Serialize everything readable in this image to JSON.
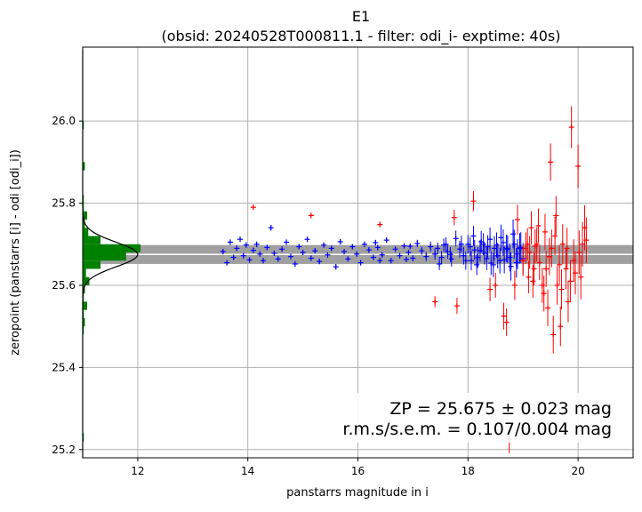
{
  "chart_data": {
    "type": "scatter",
    "title": "E1",
    "subtitle": "(obsid: 20240528T000811.1 - filter: odi_i- exptime: 40s)",
    "xlabel": "panstarrs magnitude in i",
    "ylabel": "zeropoint (panstarrs [i] - odi [odi_i])",
    "xlim": [
      11.0,
      21.0
    ],
    "ylim": [
      25.18,
      26.18
    ],
    "xticks": [
      "12",
      "14",
      "16",
      "18",
      "20"
    ],
    "yticks": [
      "25.2",
      "25.4",
      "25.6",
      "25.8",
      "26.0"
    ],
    "grid": true,
    "annotation": {
      "line1": "ZP = 25.675 ± 0.023 mag",
      "line2": "r.m.s/s.e.m. = 0.107/0.004 mag",
      "placement": "bottom-right"
    },
    "zp": 25.675,
    "zp_err": 0.023,
    "colors": {
      "used_points": "#0000ff",
      "rejected_points": "#ff0000",
      "histogram": "#008000",
      "gaussian": "#000000",
      "zp_band": "#a0a0a0",
      "zp_line": "#ffffff",
      "grid": "#b0b0b0"
    },
    "series": [
      {
        "role": "used",
        "points": [
          [
            13.55,
            25.682
          ],
          [
            13.62,
            25.655
          ],
          [
            13.68,
            25.705
          ],
          [
            13.74,
            25.668
          ],
          [
            13.8,
            25.69
          ],
          [
            13.86,
            25.712
          ],
          [
            13.92,
            25.672
          ],
          [
            13.97,
            25.698
          ],
          [
            14.03,
            25.662
          ],
          [
            14.1,
            25.685
          ],
          [
            14.16,
            25.7
          ],
          [
            14.22,
            25.676
          ],
          [
            14.28,
            25.66
          ],
          [
            14.35,
            25.692
          ],
          [
            14.42,
            25.74
          ],
          [
            14.48,
            25.678
          ],
          [
            14.55,
            25.664
          ],
          [
            14.62,
            25.688
          ],
          [
            14.7,
            25.705
          ],
          [
            14.78,
            25.67
          ],
          [
            14.86,
            25.652
          ],
          [
            14.93,
            25.694
          ],
          [
            15.0,
            25.68
          ],
          [
            15.08,
            25.712
          ],
          [
            15.15,
            25.666
          ],
          [
            15.22,
            25.684
          ],
          [
            15.3,
            25.658
          ],
          [
            15.38,
            25.698
          ],
          [
            15.45,
            25.674
          ],
          [
            15.52,
            25.69
          ],
          [
            15.6,
            25.645
          ],
          [
            15.68,
            25.706
          ],
          [
            15.75,
            25.682
          ],
          [
            15.82,
            25.664
          ],
          [
            15.9,
            25.694
          ],
          [
            15.98,
            25.676
          ],
          [
            16.05,
            25.655
          ],
          [
            16.12,
            25.7
          ],
          [
            16.2,
            25.686
          ],
          [
            16.28,
            25.668
          ],
          [
            16.36,
            25.692
          ],
          [
            16.44,
            25.674
          ],
          [
            16.52,
            25.71
          ],
          [
            16.6,
            25.66
          ],
          [
            16.68,
            25.688
          ],
          [
            16.76,
            25.672
          ],
          [
            16.84,
            25.696
          ],
          [
            16.92,
            25.68
          ],
          [
            17.0,
            25.666
          ],
          [
            17.08,
            25.702
          ],
          [
            17.16,
            25.684
          ],
          [
            17.24,
            25.67
          ],
          [
            17.32,
            25.694
          ],
          [
            17.4,
            25.676
          ],
          [
            17.48,
            25.652
          ],
          [
            17.56,
            25.698
          ],
          [
            17.63,
            25.682
          ],
          [
            17.7,
            25.664
          ],
          [
            17.78,
            25.714
          ],
          [
            17.85,
            25.688
          ],
          [
            17.92,
            25.672
          ],
          [
            18.0,
            25.7
          ],
          [
            18.06,
            25.66
          ],
          [
            18.12,
            25.686
          ],
          [
            18.18,
            25.668
          ],
          [
            18.24,
            25.706
          ],
          [
            18.3,
            25.678
          ],
          [
            18.36,
            25.694
          ],
          [
            18.42,
            25.654
          ],
          [
            18.48,
            25.69
          ],
          [
            18.54,
            25.672
          ],
          [
            18.6,
            25.716
          ],
          [
            18.66,
            25.662
          ],
          [
            18.72,
            25.688
          ],
          [
            18.78,
            25.646
          ],
          [
            18.84,
            25.7
          ],
          [
            18.9,
            25.676
          ],
          [
            18.96,
            25.692
          ],
          [
            19.0,
            25.665
          ],
          [
            17.88,
            25.7
          ],
          [
            17.96,
            25.66
          ],
          [
            18.04,
            25.694
          ],
          [
            18.1,
            25.72
          ],
          [
            18.16,
            25.65
          ],
          [
            18.22,
            25.684
          ],
          [
            18.28,
            25.7
          ],
          [
            18.34,
            25.665
          ],
          [
            18.4,
            25.712
          ],
          [
            18.46,
            25.65
          ],
          [
            18.52,
            25.698
          ],
          [
            18.58,
            25.66
          ],
          [
            18.64,
            25.704
          ],
          [
            18.7,
            25.69
          ],
          [
            18.76,
            25.668
          ],
          [
            18.82,
            25.725
          ],
          [
            18.88,
            25.655
          ],
          [
            18.94,
            25.69
          ],
          [
            17.45,
            25.69
          ],
          [
            17.52,
            25.668
          ],
          [
            17.6,
            25.7
          ],
          [
            17.68,
            25.675
          ],
          [
            16.95,
            25.695
          ],
          [
            16.88,
            25.663
          ],
          [
            16.32,
            25.704
          ],
          [
            16.4,
            25.66
          ]
        ]
      },
      {
        "role": "rejected",
        "points": [
          [
            14.1,
            25.79
          ],
          [
            15.15,
            25.77
          ],
          [
            16.4,
            25.748
          ],
          [
            17.4,
            25.56
          ],
          [
            17.75,
            25.765
          ],
          [
            17.8,
            25.55
          ],
          [
            18.1,
            25.805
          ],
          [
            18.4,
            25.59
          ],
          [
            18.5,
            25.6
          ],
          [
            18.65,
            25.525
          ],
          [
            18.7,
            25.51
          ],
          [
            18.85,
            25.6
          ],
          [
            18.9,
            25.76
          ],
          [
            19.05,
            25.69
          ],
          [
            19.1,
            25.62
          ],
          [
            19.15,
            25.74
          ],
          [
            19.2,
            25.64
          ],
          [
            19.25,
            25.7
          ],
          [
            19.3,
            25.655
          ],
          [
            19.35,
            25.6
          ],
          [
            19.4,
            25.73
          ],
          [
            19.45,
            25.545
          ],
          [
            19.5,
            25.9
          ],
          [
            19.55,
            25.48
          ],
          [
            19.6,
            25.77
          ],
          [
            19.62,
            25.6
          ],
          [
            19.68,
            25.5
          ],
          [
            19.72,
            25.7
          ],
          [
            19.78,
            25.64
          ],
          [
            19.82,
            25.56
          ],
          [
            19.88,
            25.985
          ],
          [
            19.92,
            25.66
          ],
          [
            20.0,
            25.89
          ],
          [
            20.05,
            25.62
          ],
          [
            20.08,
            25.7
          ],
          [
            20.12,
            25.74
          ],
          [
            19.0,
            25.66
          ],
          [
            19.08,
            25.7
          ],
          [
            19.18,
            25.61
          ],
          [
            19.28,
            25.745
          ],
          [
            19.38,
            25.58
          ],
          [
            19.48,
            25.67
          ],
          [
            19.58,
            25.72
          ],
          [
            19.7,
            25.59
          ],
          [
            19.8,
            25.69
          ],
          [
            19.95,
            25.63
          ],
          [
            20.02,
            25.68
          ],
          [
            20.15,
            25.71
          ],
          [
            19.12,
            25.68
          ],
          [
            19.22,
            25.695
          ],
          [
            19.42,
            25.64
          ],
          [
            19.52,
            25.69
          ],
          [
            19.66,
            25.65
          ],
          [
            19.86,
            25.61
          ],
          [
            18.75,
            25.225
          ]
        ]
      }
    ]
  }
}
